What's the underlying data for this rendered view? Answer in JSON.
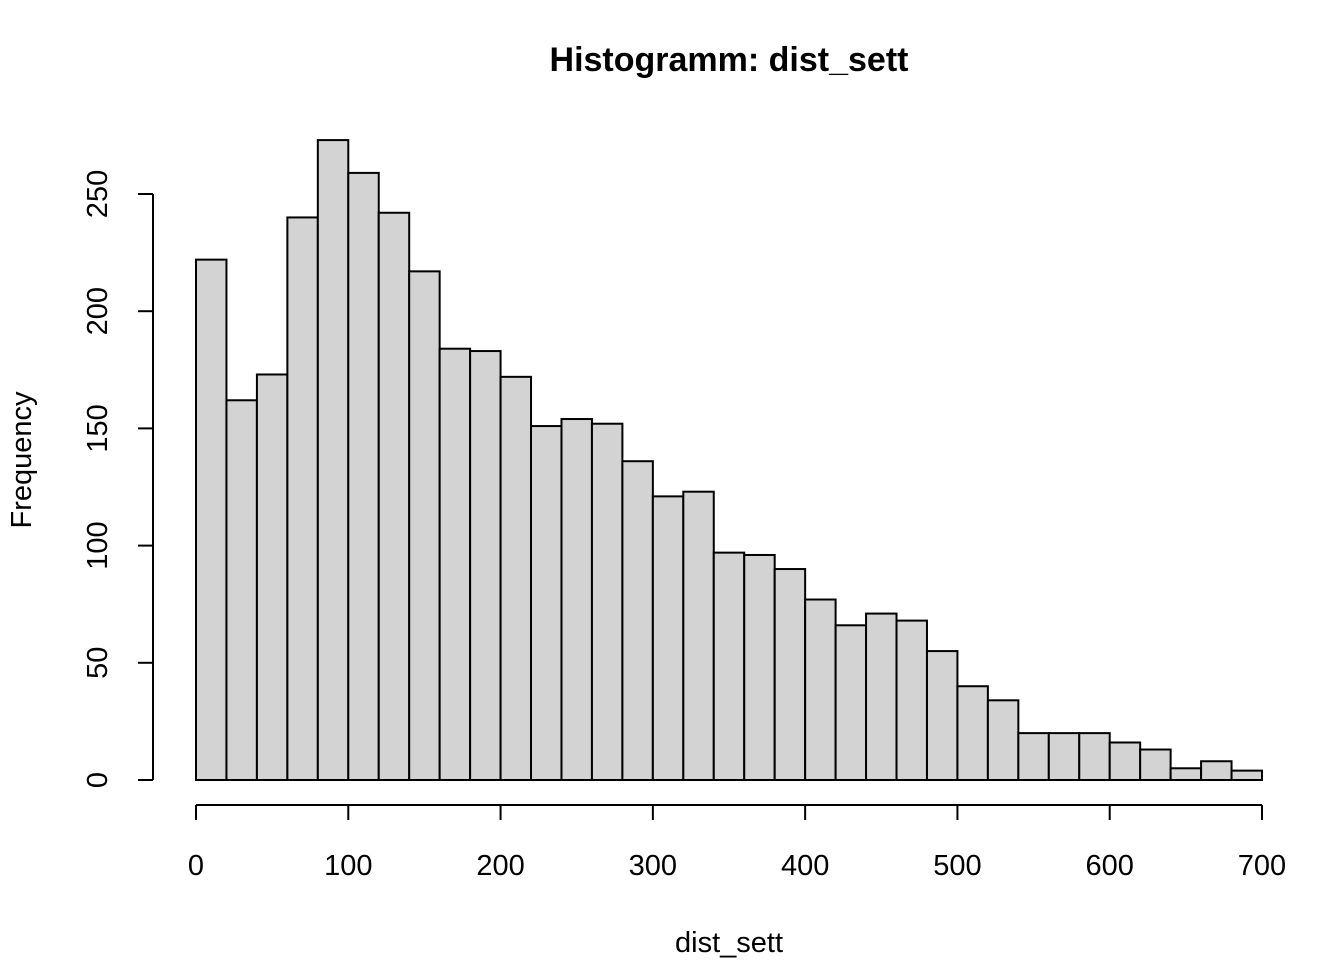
{
  "chart_data": {
    "type": "bar",
    "title": "Histogramm: dist_sett",
    "xlabel": "dist_sett",
    "ylabel": "Frequency",
    "bin_width": 20,
    "bin_start": 0,
    "values": [
      222,
      162,
      173,
      240,
      273,
      259,
      242,
      217,
      184,
      183,
      172,
      151,
      154,
      152,
      136,
      121,
      123,
      97,
      96,
      90,
      77,
      66,
      71,
      68,
      55,
      40,
      34,
      20,
      20,
      20,
      16,
      13,
      5,
      8,
      4
    ],
    "xlim": [
      0,
      700
    ],
    "ylim": [
      0,
      250
    ],
    "x_ticks": [
      "0",
      "100",
      "200",
      "300",
      "400",
      "500",
      "600",
      "700"
    ],
    "y_ticks": [
      "0",
      "50",
      "100",
      "150",
      "200",
      "250"
    ],
    "bar_color": "#d3d3d3",
    "grid": false
  }
}
